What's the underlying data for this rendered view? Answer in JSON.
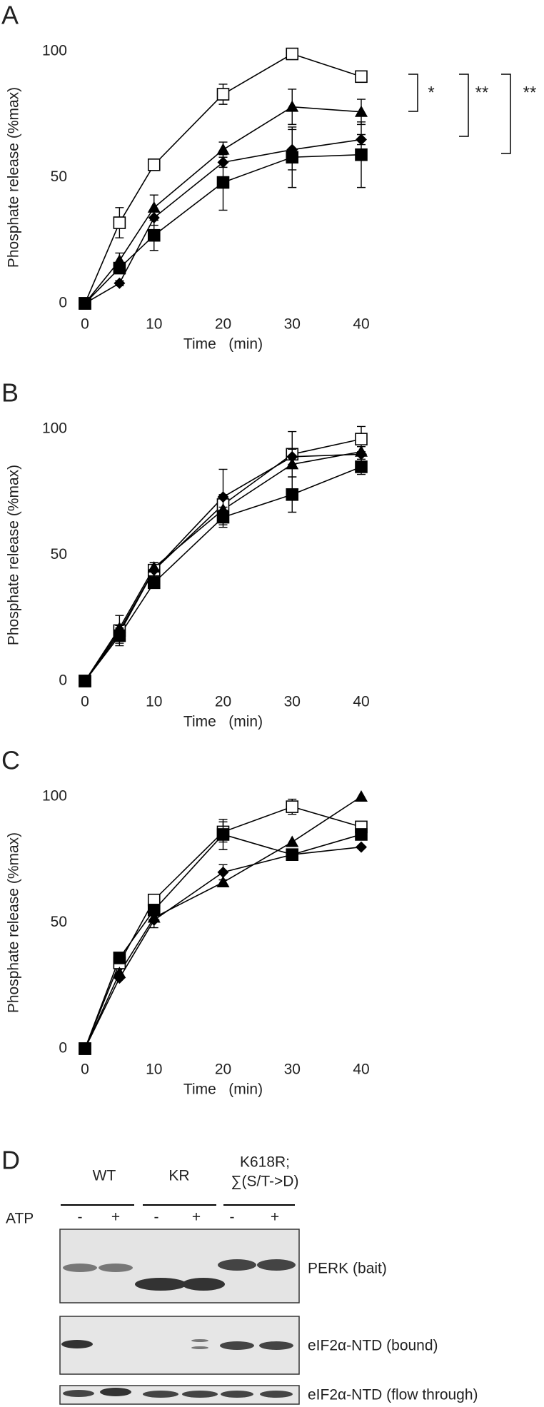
{
  "chart_data": [
    {
      "type": "line",
      "panel": "A",
      "ylabel": "Phosphate release (%max)",
      "xlabel": "Time   (min)",
      "x": [
        0,
        5,
        10,
        20,
        30,
        40
      ],
      "xlim": [
        0,
        40
      ],
      "xticks": [
        0,
        10,
        20,
        30,
        40
      ],
      "ylim": [
        0,
        100
      ],
      "yticks": [
        0,
        50,
        100
      ],
      "grid": false,
      "series": [
        {
          "marker": "open-square",
          "color": "#000000",
          "values": [
            0,
            32,
            55,
            83,
            99,
            90
          ],
          "errors": [
            null,
            6,
            2,
            4,
            null,
            null
          ]
        },
        {
          "marker": "triangle",
          "color": "#000000",
          "values": [
            0,
            17,
            38,
            61,
            78,
            76
          ],
          "errors": [
            null,
            3,
            5,
            3,
            7,
            5
          ]
        },
        {
          "marker": "diamond",
          "color": "#000000",
          "values": [
            0,
            8,
            34,
            56,
            61,
            65
          ],
          "errors": [
            null,
            1,
            3,
            2,
            8,
            2
          ]
        },
        {
          "marker": "square",
          "color": "#000000",
          "values": [
            0,
            14,
            27,
            48,
            58,
            59
          ],
          "errors": [
            null,
            2,
            6,
            11,
            12,
            13
          ]
        }
      ],
      "annotations": [
        "*",
        "**",
        "**"
      ]
    },
    {
      "type": "line",
      "panel": "B",
      "ylabel": "Phosphate release (%max)",
      "xlabel": "Time   (min)",
      "x": [
        0,
        5,
        10,
        20,
        30,
        40
      ],
      "xlim": [
        0,
        40
      ],
      "xticks": [
        0,
        10,
        20,
        30,
        40
      ],
      "ylim": [
        0,
        100
      ],
      "yticks": [
        0,
        50,
        100
      ],
      "grid": false,
      "series": [
        {
          "marker": "open-square",
          "color": "#000000",
          "values": [
            0,
            20,
            44,
            70,
            90,
            96
          ],
          "errors": [
            null,
            6,
            3,
            4,
            9,
            5
          ]
        },
        {
          "marker": "triangle",
          "color": "#000000",
          "values": [
            0,
            21,
            45,
            68,
            86,
            91
          ],
          "errors": [
            null,
            null,
            null,
            null,
            null,
            null
          ]
        },
        {
          "marker": "diamond",
          "color": "#000000",
          "values": [
            0,
            19,
            44,
            73,
            89,
            90
          ],
          "errors": [
            null,
            3,
            3,
            11,
            3,
            3
          ]
        },
        {
          "marker": "square",
          "color": "#000000",
          "values": [
            0,
            18,
            39,
            65,
            74,
            85
          ],
          "errors": [
            null,
            3,
            2,
            4,
            7,
            3
          ]
        }
      ]
    },
    {
      "type": "line",
      "panel": "C",
      "ylabel": "Phosphate release (%max)",
      "xlabel": "Time   (min)",
      "x": [
        0,
        5,
        10,
        20,
        30,
        40
      ],
      "xlim": [
        0,
        40
      ],
      "xticks": [
        0,
        10,
        20,
        30,
        40
      ],
      "ylim": [
        0,
        100
      ],
      "yticks": [
        0,
        50,
        100
      ],
      "grid": false,
      "series": [
        {
          "marker": "open-square",
          "color": "#000000",
          "values": [
            0,
            34,
            59,
            86,
            96,
            88
          ],
          "errors": [
            null,
            null,
            null,
            4,
            3,
            null
          ]
        },
        {
          "marker": "triangle",
          "color": "#000000",
          "values": [
            0,
            30,
            52,
            66,
            82,
            100
          ],
          "errors": [
            null,
            null,
            null,
            null,
            null,
            null
          ]
        },
        {
          "marker": "diamond",
          "color": "#000000",
          "values": [
            0,
            28,
            51,
            70,
            77,
            80
          ],
          "errors": [
            null,
            null,
            3,
            3,
            null,
            null
          ]
        },
        {
          "marker": "square",
          "color": "#000000",
          "values": [
            0,
            36,
            55,
            85,
            77,
            85
          ],
          "errors": [
            null,
            null,
            null,
            6,
            null,
            null
          ]
        }
      ]
    }
  ],
  "gel": {
    "panel": "D",
    "groups": [
      [
        "WT"
      ],
      [
        "KR"
      ],
      [
        "K618R;",
        "∑(S/T->D)"
      ]
    ],
    "row_label": "ATP",
    "lanes": [
      "-",
      "+",
      "-",
      "+",
      "-",
      "+"
    ],
    "blots": [
      "PERK (bait)",
      "eIF2α-NTD (bound)",
      "eIF2α-NTD (flow through)"
    ]
  }
}
